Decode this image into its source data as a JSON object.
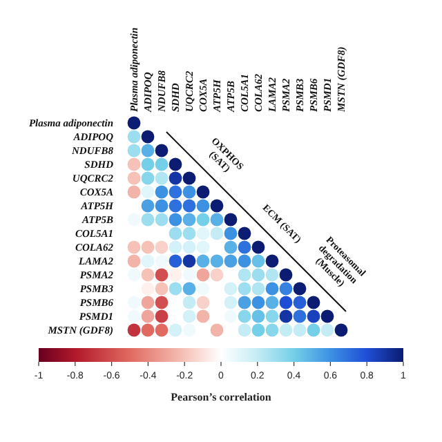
{
  "chart_data": {
    "type": "heatmap",
    "xlabel": null,
    "clabel": "Pearson’s correlation",
    "categories": [
      "Plasma adiponectin",
      "ADIPOQ",
      "NDUFB8",
      "SDHD",
      "UQCRC2",
      "COX5A",
      "ATP5H",
      "ATP5B",
      "COL5A1",
      "COLA62",
      "LAMA2",
      "PSMA2",
      "PSMB3",
      "PSMB6",
      "PSMD1",
      "MSTN (GDF8)"
    ],
    "y_categories": [
      "Plasma adiponectin",
      "ADIPOQ",
      "NDUFB8",
      "SDHD",
      "UQCRC2",
      "COX5A",
      "ATP5H",
      "ATP5B",
      "COL5A1",
      "COLA62",
      "LAMA2",
      "PSMA2",
      "PSMB3",
      "PSMB6",
      "PSMD1",
      "MSTN (GDF8)"
    ],
    "cells": [
      [
        1,
        null,
        null,
        null,
        null,
        null,
        null,
        null,
        null,
        null,
        null,
        null,
        null,
        null,
        null,
        null
      ],
      [
        0.3,
        1,
        null,
        null,
        null,
        null,
        null,
        null,
        null,
        null,
        null,
        null,
        null,
        null,
        null,
        null
      ],
      [
        0.3,
        0.5,
        1,
        null,
        null,
        null,
        null,
        null,
        null,
        null,
        null,
        null,
        null,
        null,
        null,
        null
      ],
      [
        -0.2,
        0.4,
        0.4,
        1,
        null,
        null,
        null,
        null,
        null,
        null,
        null,
        null,
        null,
        null,
        null,
        null
      ],
      [
        -0.2,
        0.35,
        0.25,
        0.9,
        1,
        null,
        null,
        null,
        null,
        null,
        null,
        null,
        null,
        null,
        null,
        null
      ],
      [
        -0.25,
        0.1,
        0.6,
        0.7,
        0.6,
        1,
        null,
        null,
        null,
        null,
        null,
        null,
        null,
        null,
        null,
        null
      ],
      [
        0,
        0.55,
        0.6,
        0.7,
        0.7,
        0.6,
        1,
        null,
        null,
        null,
        null,
        null,
        null,
        null,
        null,
        null
      ],
      [
        0.05,
        0.3,
        0.3,
        0.6,
        0.5,
        0.4,
        0.5,
        1,
        null,
        null,
        null,
        null,
        null,
        null,
        null,
        null
      ],
      [
        0,
        0,
        0,
        0.3,
        0.3,
        0.1,
        0.2,
        0.6,
        1,
        null,
        null,
        null,
        null,
        null,
        null,
        null
      ],
      [
        -0.2,
        -0.2,
        -0.15,
        0.15,
        0.15,
        0.1,
        0,
        0.5,
        0.7,
        1,
        null,
        null,
        null,
        null,
        null,
        null
      ],
      [
        -0.25,
        0.1,
        0.05,
        0.75,
        0.9,
        0.5,
        0.5,
        0.55,
        0.6,
        0.45,
        1,
        null,
        null,
        null,
        null,
        null
      ],
      [
        0.05,
        -0.2,
        -0.6,
        -0.05,
        0.05,
        -0.3,
        -0.15,
        0,
        0.25,
        0.3,
        0.25,
        1,
        null,
        null,
        null,
        null
      ],
      [
        0,
        -0.05,
        -0.2,
        0.3,
        0.5,
        0.05,
        0,
        0.15,
        0.3,
        0.25,
        0.6,
        0.65,
        1,
        null,
        null,
        null
      ],
      [
        0.05,
        -0.3,
        -0.6,
        0,
        0.2,
        -0.15,
        0,
        0.15,
        0.55,
        0.6,
        0.5,
        0.8,
        0.75,
        1,
        null,
        null
      ],
      [
        0.05,
        -0.3,
        -0.65,
        0,
        0.15,
        -0.25,
        0,
        0.05,
        0.35,
        0.45,
        0.35,
        0.9,
        0.7,
        0.85,
        1,
        null
      ],
      [
        -0.7,
        -0.5,
        -0.5,
        0.15,
        0.05,
        0,
        -0.25,
        0,
        0.2,
        0.4,
        0.35,
        0.2,
        0.2,
        0.4,
        0.2,
        1
      ]
    ],
    "clim": [
      -1,
      1
    ],
    "cticks": [
      -1,
      -0.8,
      -0.6,
      -0.4,
      -0.2,
      0,
      0.2,
      0.4,
      0.6,
      0.8,
      1
    ],
    "annotations": [
      "OXPHOS (SAT)",
      "ECM (SAT)",
      "Proteasomal degradation (Muscle)"
    ]
  }
}
